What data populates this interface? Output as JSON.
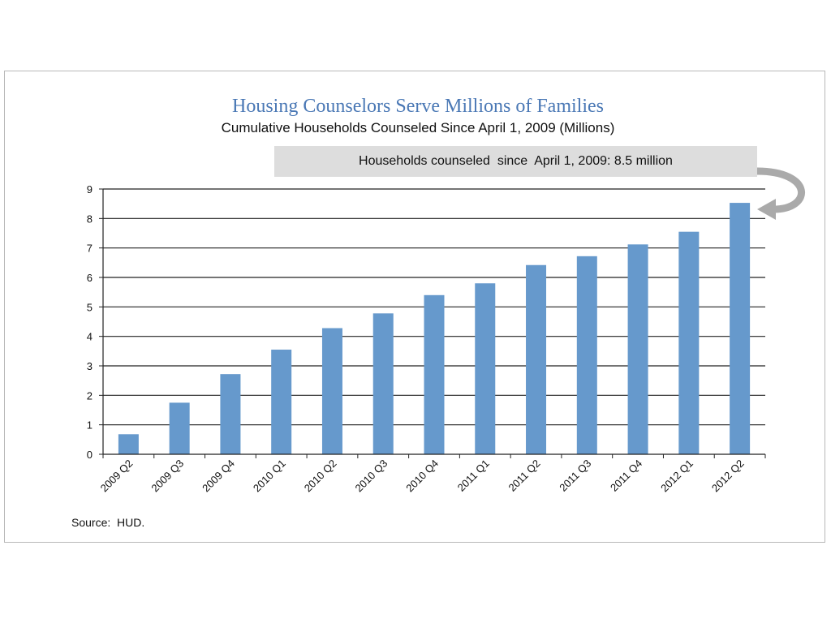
{
  "chart_data": {
    "type": "bar",
    "title": "Housing Counselors Serve Millions of Families",
    "subtitle": "Cumulative Households Counseled Since April 1, 2009 (Millions)",
    "categories": [
      "2009 Q2",
      "2009 Q3",
      "2009 Q4",
      "2010 Q1",
      "2010 Q2",
      "2010 Q3",
      "2010 Q4",
      "2011 Q1",
      "2011 Q2",
      "2011 Q3",
      "2011 Q4",
      "2012 Q1",
      "2012 Q2"
    ],
    "values": [
      0.68,
      1.75,
      2.72,
      3.55,
      4.28,
      4.78,
      5.4,
      5.8,
      6.42,
      6.72,
      7.12,
      7.55,
      8.53
    ],
    "ylim": [
      0,
      9
    ],
    "yticks": [
      0,
      1,
      2,
      3,
      4,
      5,
      6,
      7,
      8,
      9
    ],
    "xlabel": "",
    "ylabel": "",
    "grid": true,
    "bar_color": "#6699cc",
    "annotation": "Households counseled  since  April 1, 2009: 8.5 million",
    "source": "Source:  HUD."
  }
}
